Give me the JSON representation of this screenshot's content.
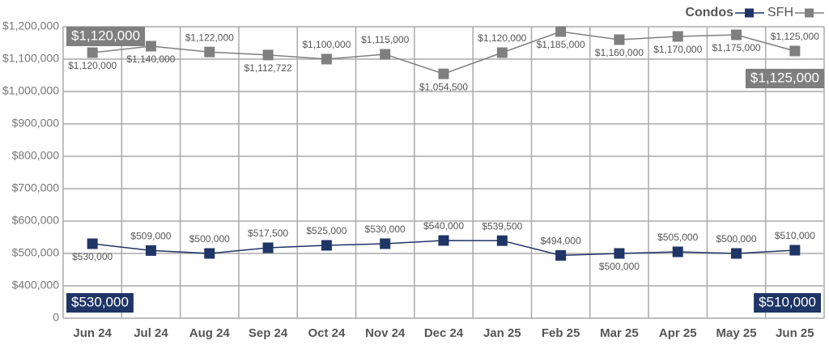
{
  "chart_data": {
    "type": "line",
    "categories": [
      "Jun 24",
      "Jul 24",
      "Aug 24",
      "Sep 24",
      "Oct 24",
      "Nov 24",
      "Dec 24",
      "Jan 25",
      "Feb 25",
      "Mar 25",
      "Apr 25",
      "May 25",
      "Jun 25"
    ],
    "series": [
      {
        "name": "Condos",
        "color": "#1f3566",
        "values": [
          530000,
          509000,
          500000,
          517500,
          525000,
          530000,
          540000,
          539500,
          494000,
          500000,
          505000,
          500000,
          510000
        ],
        "value_labels": [
          "$530,000",
          "$509,000",
          "$500,000",
          "$517,500",
          "$525,000",
          "$530,000",
          "$540,000",
          "$539,500",
          "$494,000",
          "$500,000",
          "$505,000",
          "$500,000",
          "$510,000"
        ],
        "badges": [
          "$530,000",
          "$510,000"
        ]
      },
      {
        "name": "SFH",
        "color": "#7f7f7f",
        "values": [
          1120000,
          1140000,
          1122000,
          1112722,
          1100000,
          1115000,
          1054500,
          1120000,
          1185000,
          1160000,
          1170000,
          1175000,
          1125000
        ],
        "value_labels": [
          "$1,120,000",
          "$1,140,000",
          "$1,122,000",
          "$1,112,722",
          "$1,100,000",
          "$1,115,000",
          "$1,054,500",
          "$1,120,000",
          "$1,185,000",
          "$1,160,000",
          "$1,170,000",
          "$1,175,000",
          "$1,125,000"
        ],
        "badges": [
          "$1,120,000",
          "$1,125,000"
        ]
      }
    ],
    "ylim": [
      0,
      1200000
    ],
    "yticks": [
      0,
      {
        "value": 400000,
        "label": "$400,000"
      },
      {
        "value": 500000,
        "label": "$500,000"
      },
      {
        "value": 600000,
        "label": "$600,000"
      },
      {
        "value": 700000,
        "label": "$700,000"
      },
      {
        "value": 800000,
        "label": "$800,000"
      },
      {
        "value": 900000,
        "label": "$900,000"
      },
      {
        "value": 1000000,
        "label": "$1,000,000"
      },
      {
        "value": 1100000,
        "label": "$1,100,000"
      },
      {
        "value": 1200000,
        "label": "$1,200,000"
      }
    ],
    "axis_break": true,
    "grid": true,
    "legend": "top-right"
  }
}
